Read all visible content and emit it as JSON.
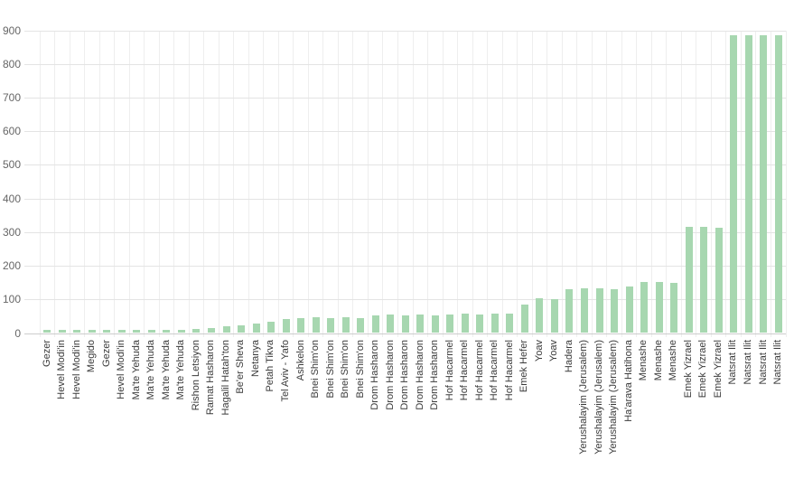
{
  "chart_data": {
    "type": "bar",
    "title": "",
    "xlabel": "",
    "ylabel": "",
    "ylim": [
      0,
      900
    ],
    "y_tick_interval": 100,
    "y_tick_labels": [
      "0",
      "100",
      "200",
      "300",
      "400",
      "500",
      "600",
      "700",
      "800",
      "900"
    ],
    "grid": true,
    "legend_position": "none",
    "bar_color": "#a7d7b0",
    "categories": [
      "Gezer",
      "Hevel Modi'in",
      "Hevel Modi'in",
      "Megido",
      "Gezer",
      "Hevel Modi'in",
      "Ma'te Yehuda",
      "Ma'te Yehuda",
      "Ma'te Yehuda",
      "Ma'te Yehuda",
      "Rishon Letsiyon",
      "Ramat Hasharon",
      "Hagalil Hatah'ton",
      "Be'er Sheva",
      "Netanya",
      "Petah Tikva",
      "Tel Aviv - Yafo",
      "Ashkelon",
      "Bnei Shim'on",
      "Bnei Shim'on",
      "Bnei Shim'on",
      "Bnei Shim'on",
      "Drom Hasharon",
      "Drom Hasharon",
      "Drom Hasharon",
      "Drom Hasharon",
      "Drom Hasharon",
      "Hof Hacarmel",
      "Hof Hacarmel",
      "Hof Hacarmel",
      "Hof Hacarmel",
      "Hof Hacarmel",
      "Emek Hefer",
      "Yoav",
      "Yoav",
      "Hadera",
      "Yerushalayim (Jerusalem)",
      "Yerushalayim (Jerusalem)",
      "Yerushalayim (Jerusalem)",
      "Ha'arava Hatihona",
      "Menashe",
      "Menashe",
      "Menashe",
      "Emek Yizrael",
      "Emek Yizrael",
      "Emek Yizrael",
      "Natsrat Ilit",
      "Natsrat Ilit",
      "Natsrat Ilit",
      "Natsrat Ilit"
    ],
    "values": [
      7,
      7,
      7,
      7,
      7,
      7,
      8,
      8,
      8,
      8,
      11,
      14,
      18,
      22,
      28,
      33,
      39,
      42,
      45,
      44,
      45,
      43,
      52,
      53,
      52,
      53,
      51,
      55,
      56,
      55,
      56,
      57,
      83,
      101,
      100,
      128,
      131,
      131,
      130,
      137,
      150,
      150,
      148,
      314,
      314,
      313,
      885,
      885,
      884,
      885
    ]
  },
  "style": {
    "background": "#ffffff",
    "h_grid_color": "#e4e4e4",
    "v_grid_color": "#eeeeee",
    "axis_line_color": "#cccccc",
    "y_label_color": "#666666",
    "x_label_color": "#3a3a3a",
    "bar_color": "#a7d7b0"
  }
}
